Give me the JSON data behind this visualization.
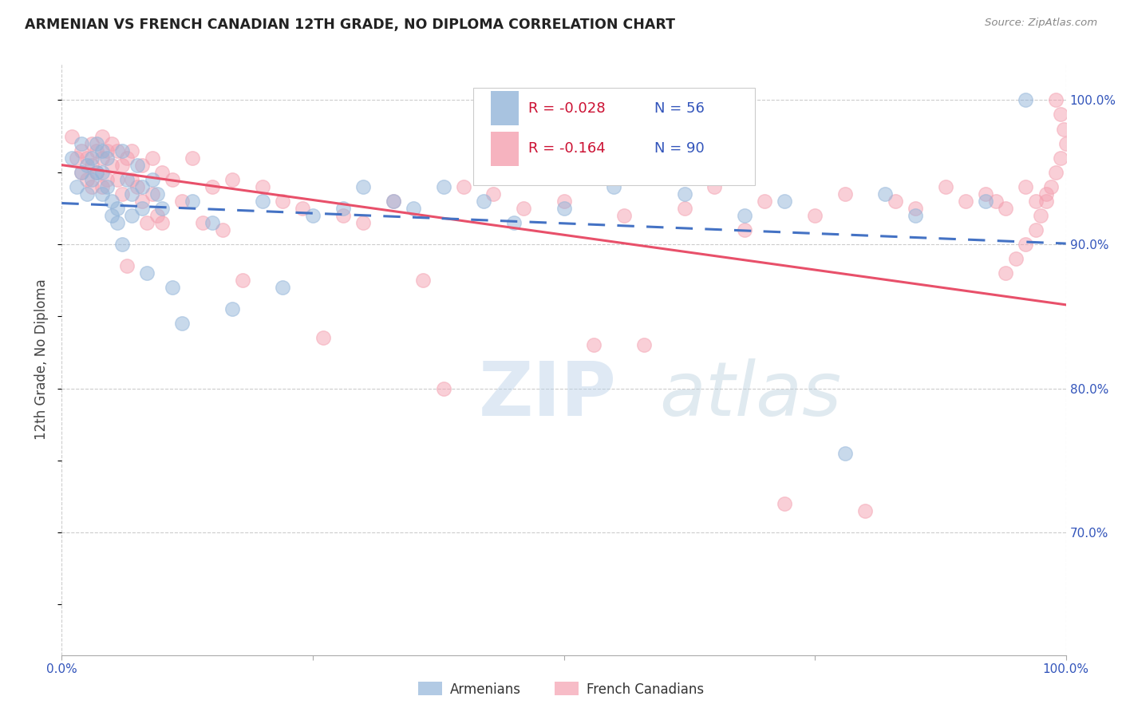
{
  "title": "ARMENIAN VS FRENCH CANADIAN 12TH GRADE, NO DIPLOMA CORRELATION CHART",
  "source": "Source: ZipAtlas.com",
  "ylabel": "12th Grade, No Diploma",
  "legend_label1": "Armenians",
  "legend_label2": "French Canadians",
  "legend_r1": "R = -0.028",
  "legend_n1": "N = 56",
  "legend_r2": "R = -0.164",
  "legend_n2": "N = 90",
  "color_blue": "#92B4D9",
  "color_pink": "#F4A0B0",
  "color_blue_line": "#4472C4",
  "color_pink_line": "#E8506A",
  "watermark_zip": "ZIP",
  "watermark_atlas": "atlas",
  "xlim": [
    0.0,
    1.0
  ],
  "ylim": [
    0.615,
    1.025
  ],
  "yticks": [
    0.7,
    0.8,
    0.9,
    1.0
  ],
  "ytick_labels": [
    "70.0%",
    "80.0%",
    "90.0%",
    "100.0%"
  ],
  "arm_line_x": [
    0.0,
    1.0
  ],
  "arm_line_y": [
    0.9285,
    0.9005
  ],
  "fr_line_x": [
    0.0,
    1.0
  ],
  "fr_line_y": [
    0.955,
    0.858
  ],
  "armenian_x": [
    0.01,
    0.015,
    0.02,
    0.02,
    0.025,
    0.025,
    0.03,
    0.03,
    0.035,
    0.035,
    0.04,
    0.04,
    0.04,
    0.045,
    0.045,
    0.05,
    0.05,
    0.055,
    0.055,
    0.06,
    0.06,
    0.065,
    0.07,
    0.07,
    0.075,
    0.08,
    0.08,
    0.085,
    0.09,
    0.095,
    0.1,
    0.11,
    0.12,
    0.13,
    0.15,
    0.17,
    0.2,
    0.22,
    0.25,
    0.28,
    0.3,
    0.33,
    0.35,
    0.38,
    0.42,
    0.45,
    0.5,
    0.55,
    0.62,
    0.68,
    0.72,
    0.78,
    0.82,
    0.85,
    0.92,
    0.96
  ],
  "armenian_y": [
    0.96,
    0.94,
    0.97,
    0.95,
    0.955,
    0.935,
    0.96,
    0.945,
    0.97,
    0.95,
    0.965,
    0.95,
    0.935,
    0.96,
    0.94,
    0.93,
    0.92,
    0.925,
    0.915,
    0.965,
    0.9,
    0.945,
    0.935,
    0.92,
    0.955,
    0.94,
    0.925,
    0.88,
    0.945,
    0.935,
    0.925,
    0.87,
    0.845,
    0.93,
    0.915,
    0.855,
    0.93,
    0.87,
    0.92,
    0.925,
    0.94,
    0.93,
    0.925,
    0.94,
    0.93,
    0.915,
    0.925,
    0.94,
    0.935,
    0.92,
    0.93,
    0.755,
    0.935,
    0.92,
    0.93,
    1.0
  ],
  "french_x": [
    0.01,
    0.015,
    0.02,
    0.02,
    0.025,
    0.025,
    0.03,
    0.03,
    0.03,
    0.035,
    0.035,
    0.04,
    0.04,
    0.04,
    0.045,
    0.045,
    0.05,
    0.05,
    0.055,
    0.055,
    0.06,
    0.06,
    0.065,
    0.065,
    0.07,
    0.07,
    0.075,
    0.08,
    0.08,
    0.085,
    0.09,
    0.09,
    0.095,
    0.1,
    0.1,
    0.11,
    0.12,
    0.13,
    0.14,
    0.15,
    0.16,
    0.17,
    0.18,
    0.2,
    0.22,
    0.24,
    0.26,
    0.28,
    0.3,
    0.33,
    0.36,
    0.38,
    0.4,
    0.43,
    0.46,
    0.5,
    0.53,
    0.56,
    0.58,
    0.62,
    0.65,
    0.68,
    0.7,
    0.72,
    0.75,
    0.78,
    0.8,
    0.83,
    0.85,
    0.88,
    0.9,
    0.92,
    0.94,
    0.96,
    0.97,
    0.98,
    0.99,
    0.995,
    0.998,
    1.0,
    0.995,
    0.99,
    0.985,
    0.98,
    0.975,
    0.97,
    0.96,
    0.95,
    0.94,
    0.93
  ],
  "french_y": [
    0.975,
    0.96,
    0.965,
    0.95,
    0.96,
    0.945,
    0.97,
    0.955,
    0.94,
    0.965,
    0.95,
    0.975,
    0.96,
    0.94,
    0.965,
    0.945,
    0.97,
    0.955,
    0.965,
    0.945,
    0.955,
    0.935,
    0.96,
    0.885,
    0.965,
    0.945,
    0.94,
    0.955,
    0.93,
    0.915,
    0.96,
    0.935,
    0.92,
    0.95,
    0.915,
    0.945,
    0.93,
    0.96,
    0.915,
    0.94,
    0.91,
    0.945,
    0.875,
    0.94,
    0.93,
    0.925,
    0.835,
    0.92,
    0.915,
    0.93,
    0.875,
    0.8,
    0.94,
    0.935,
    0.925,
    0.93,
    0.83,
    0.92,
    0.83,
    0.925,
    0.94,
    0.91,
    0.93,
    0.72,
    0.92,
    0.935,
    0.715,
    0.93,
    0.925,
    0.94,
    0.93,
    0.935,
    0.925,
    0.94,
    0.93,
    0.935,
    1.0,
    0.99,
    0.98,
    0.97,
    0.96,
    0.95,
    0.94,
    0.93,
    0.92,
    0.91,
    0.9,
    0.89,
    0.88,
    0.93
  ]
}
